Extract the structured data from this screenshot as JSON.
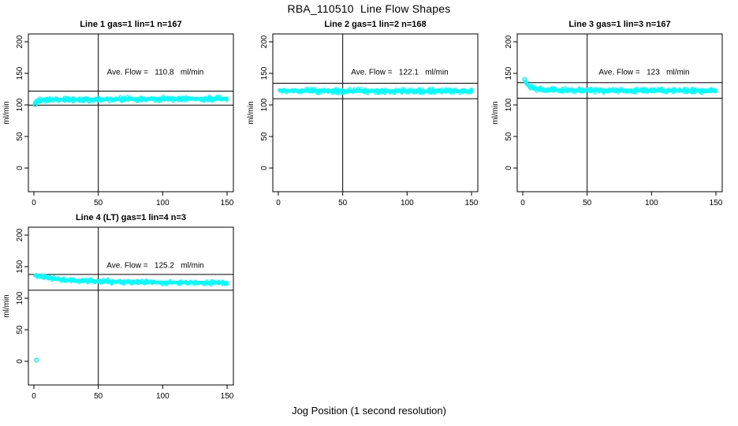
{
  "page": {
    "title": "RBA_110510  Line Flow Shapes",
    "xlabel": "Jog Position (1 second resolution)",
    "background": "#ffffff"
  },
  "colors": {
    "points": "#00ffff",
    "axis": "#000000"
  },
  "axes": {
    "ylabel": "ml/min",
    "xticks": [
      0,
      50,
      100,
      150
    ],
    "yticks": [
      0,
      50,
      100,
      150,
      200
    ],
    "xlim": [
      0,
      150
    ],
    "ylim": [
      0,
      200
    ],
    "vline_x": 50
  },
  "chart_data": [
    {
      "type": "scatter",
      "title": "Line 1 gas=1 lin=1 n=167",
      "n": 167,
      "ave_flow": 110.8,
      "ave_label": "Ave. Flow =  110.8  ml/min",
      "hlines": [
        121.9,
        99.7
      ],
      "centerline": [
        [
          1,
          104
        ],
        [
          2,
          106.5
        ],
        [
          4,
          107.5
        ],
        [
          10,
          108
        ],
        [
          25,
          108.4
        ],
        [
          50,
          108.8
        ],
        [
          80,
          109.2
        ],
        [
          120,
          109.6
        ],
        [
          150,
          110
        ]
      ],
      "band_halfwidth": 1.5,
      "outliers": [
        [
          1,
          100.5
        ]
      ],
      "dots": 260
    },
    {
      "type": "scatter",
      "title": "Line 2 gas=1 lin=2 n=168",
      "n": 168,
      "ave_flow": 122.1,
      "ave_label": "Ave. Flow =  122.1  ml/min",
      "hlines": [
        134.3,
        109.9
      ],
      "centerline": [
        [
          1,
          123.5
        ],
        [
          3,
          122.5
        ],
        [
          10,
          122.2
        ],
        [
          50,
          122.0
        ],
        [
          100,
          121.8
        ],
        [
          150,
          121.5
        ]
      ],
      "band_halfwidth": 1.5,
      "outliers": [],
      "dots": 260
    },
    {
      "type": "scatter",
      "title": "Line 3 gas=1 lin=3 n=167",
      "n": 167,
      "ave_flow": 123,
      "ave_label": "Ave. Flow =  123  ml/min",
      "hlines": [
        135.3,
        110.7
      ],
      "centerline": [
        [
          2,
          137
        ],
        [
          3,
          133.5
        ],
        [
          5,
          130
        ],
        [
          7,
          127.5
        ],
        [
          10,
          125.8
        ],
        [
          15,
          124.3
        ],
        [
          25,
          123.4
        ],
        [
          50,
          123
        ],
        [
          100,
          122.7
        ],
        [
          150,
          122.4
        ]
      ],
      "band_halfwidth": 1.4,
      "outliers": [
        [
          1.5,
          140.5
        ]
      ],
      "dots": 260
    },
    {
      "type": "scatter",
      "title": "Line 4 (LT) gas=1 lin=4 n=3",
      "n": 3,
      "ave_flow": 125.2,
      "ave_label": "Ave. Flow =  125.2  ml/min",
      "hlines": [
        137.7,
        112.7
      ],
      "centerline": [
        [
          1,
          136
        ],
        [
          4,
          134.5
        ],
        [
          8,
          133
        ],
        [
          14,
          131.2
        ],
        [
          22,
          129.4
        ],
        [
          32,
          128
        ],
        [
          45,
          126.8
        ],
        [
          60,
          126
        ],
        [
          90,
          125.2
        ],
        [
          120,
          124.7
        ],
        [
          150,
          124.3
        ]
      ],
      "band_halfwidth": 1.3,
      "outliers": [
        [
          2,
          2
        ]
      ],
      "dots": 210
    }
  ]
}
